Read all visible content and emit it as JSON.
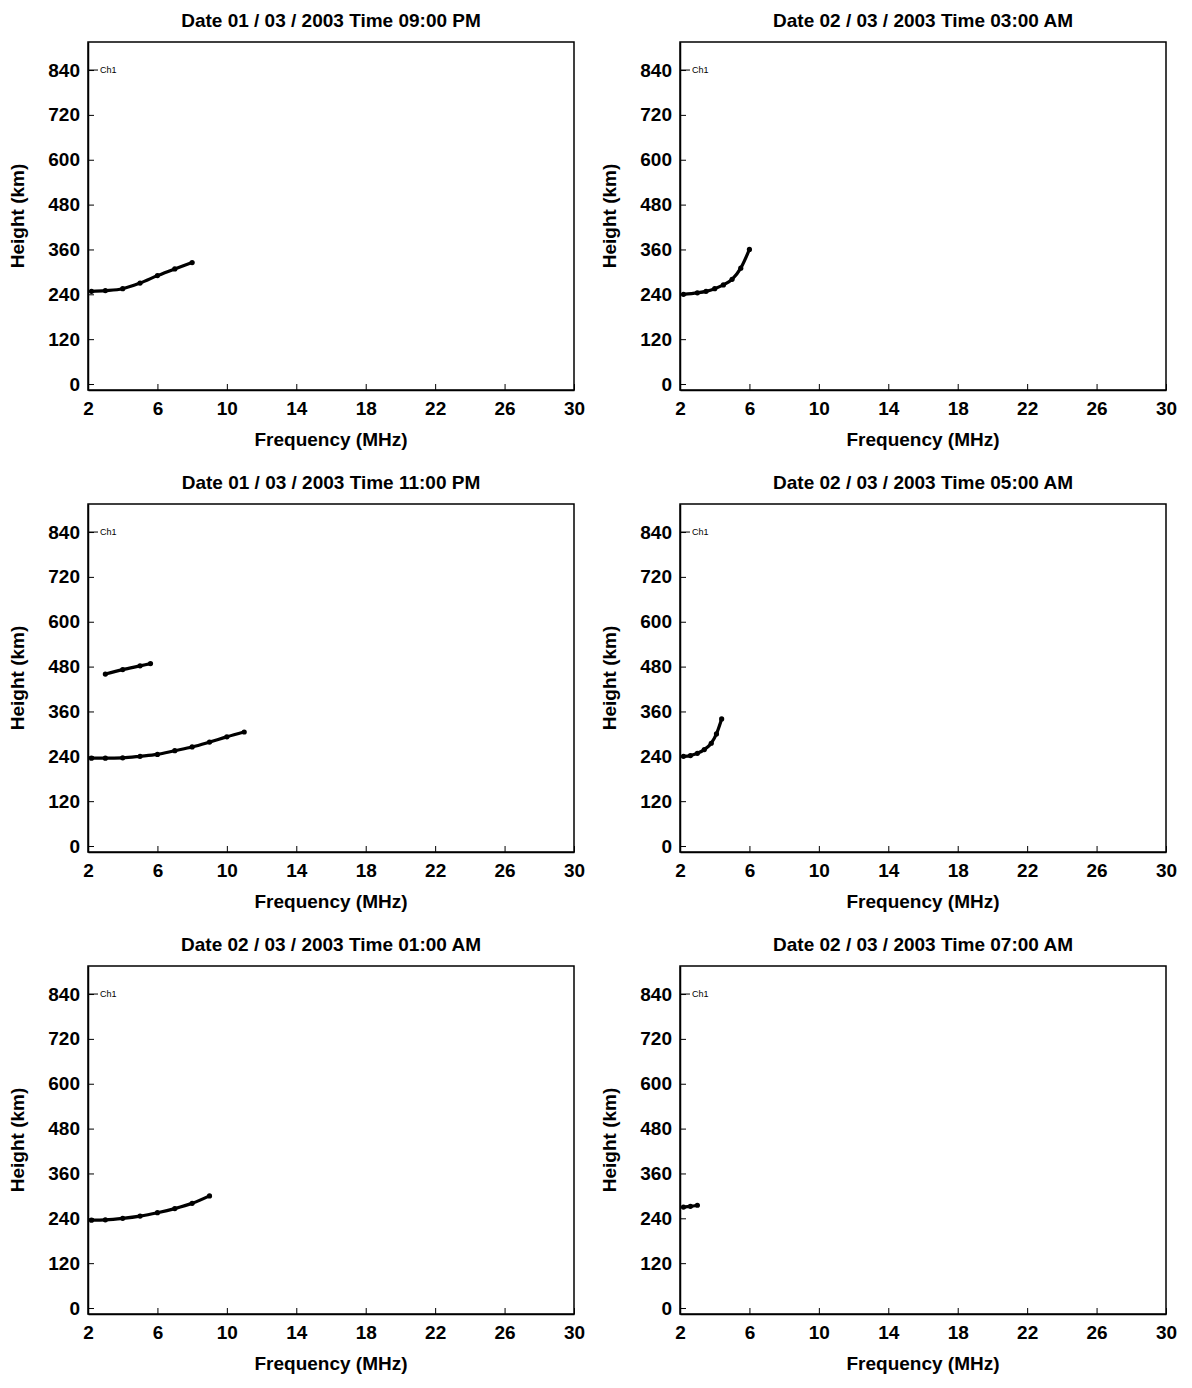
{
  "chart_data": [
    {
      "type": "line",
      "title": "Date 01 / 03 / 2003 Time 09:00 PM",
      "x_label": "Frequency (MHz)",
      "y_label": "Height (km)",
      "annotations": [
        {
          "text": "Ch1",
          "x": 2,
          "y": 840
        }
      ],
      "xlim": [
        2,
        30
      ],
      "ylim": [
        -16,
        915
      ],
      "xticks": [
        2,
        6,
        10,
        14,
        18,
        22,
        26,
        30
      ],
      "yticks": [
        0,
        120,
        240,
        360,
        480,
        600,
        720,
        840
      ],
      "series": [
        {
          "color": "#000000",
          "marker": "circle",
          "line_style": "solid",
          "x": [
            2.2,
            3,
            4,
            5,
            6,
            7,
            8
          ],
          "values": [
            248,
            250,
            255,
            270,
            290,
            308,
            325
          ]
        }
      ]
    },
    {
      "type": "line",
      "title": "Date 01 / 03 / 2003 Time 11:00 PM",
      "x_label": "Frequency (MHz)",
      "y_label": "Height (km)",
      "annotations": [
        {
          "text": "Ch1",
          "x": 2,
          "y": 840
        }
      ],
      "xlim": [
        2,
        30
      ],
      "ylim": [
        -16,
        915
      ],
      "xticks": [
        2,
        6,
        10,
        14,
        18,
        22,
        26,
        30
      ],
      "yticks": [
        0,
        120,
        240,
        360,
        480,
        600,
        720,
        840
      ],
      "series": [
        {
          "color": "#000000",
          "marker": "circle",
          "line_style": "solid",
          "x": [
            2.2,
            3,
            4,
            5,
            6,
            7,
            8,
            9,
            10,
            11
          ],
          "values": [
            235,
            235,
            236,
            240,
            245,
            255,
            265,
            278,
            292,
            305
          ]
        },
        {
          "color": "#000000",
          "marker": "circle",
          "line_style": "solid",
          "x": [
            3,
            4,
            5,
            5.6
          ],
          "values": [
            460,
            472,
            482,
            488
          ]
        }
      ]
    },
    {
      "type": "line",
      "title": "Date 02 / 03 / 2003 Time 01:00 AM",
      "x_label": "Frequency (MHz)",
      "y_label": "Height (km)",
      "annotations": [
        {
          "text": "Ch1",
          "x": 2,
          "y": 840
        }
      ],
      "xlim": [
        2,
        30
      ],
      "ylim": [
        -16,
        915
      ],
      "xticks": [
        2,
        6,
        10,
        14,
        18,
        22,
        26,
        30
      ],
      "yticks": [
        0,
        120,
        240,
        360,
        480,
        600,
        720,
        840
      ],
      "series": [
        {
          "color": "#000000",
          "marker": "circle",
          "line_style": "solid",
          "x": [
            2.2,
            3,
            4,
            5,
            6,
            7,
            8,
            9
          ],
          "values": [
            235,
            236,
            240,
            246,
            255,
            266,
            280,
            300
          ]
        }
      ]
    },
    {
      "type": "line",
      "title": "Date 02 / 03 / 2003 Time 03:00 AM",
      "x_label": "Frequency (MHz)",
      "y_label": "Height (km)",
      "annotations": [
        {
          "text": "Ch1",
          "x": 2,
          "y": 840
        }
      ],
      "xlim": [
        2,
        30
      ],
      "ylim": [
        -16,
        915
      ],
      "xticks": [
        2,
        6,
        10,
        14,
        18,
        22,
        26,
        30
      ],
      "yticks": [
        0,
        120,
        240,
        360,
        480,
        600,
        720,
        840
      ],
      "series": [
        {
          "color": "#000000",
          "marker": "circle",
          "line_style": "solid",
          "x": [
            2.2,
            3,
            3.5,
            4,
            4.5,
            5,
            5.5,
            6
          ],
          "values": [
            240,
            244,
            248,
            255,
            265,
            280,
            310,
            360
          ]
        }
      ]
    },
    {
      "type": "line",
      "title": "Date 02 / 03 / 2003 Time 05:00 AM",
      "x_label": "Frequency (MHz)",
      "y_label": "Height (km)",
      "annotations": [
        {
          "text": "Ch1",
          "x": 2,
          "y": 840
        }
      ],
      "xlim": [
        2,
        30
      ],
      "ylim": [
        -16,
        915
      ],
      "xticks": [
        2,
        6,
        10,
        14,
        18,
        22,
        26,
        30
      ],
      "yticks": [
        0,
        120,
        240,
        360,
        480,
        600,
        720,
        840
      ],
      "series": [
        {
          "color": "#000000",
          "marker": "circle",
          "line_style": "solid",
          "x": [
            2.2,
            2.6,
            3,
            3.4,
            3.8,
            4.1,
            4.4
          ],
          "values": [
            240,
            242,
            248,
            258,
            275,
            300,
            340
          ]
        }
      ]
    },
    {
      "type": "line",
      "title": "Date 02 / 03 / 2003 Time 07:00 AM",
      "x_label": "Frequency (MHz)",
      "y_label": "Height (km)",
      "annotations": [
        {
          "text": "Ch1",
          "x": 2,
          "y": 840
        }
      ],
      "xlim": [
        2,
        30
      ],
      "ylim": [
        -16,
        915
      ],
      "xticks": [
        2,
        6,
        10,
        14,
        18,
        22,
        26,
        30
      ],
      "yticks": [
        0,
        120,
        240,
        360,
        480,
        600,
        720,
        840
      ],
      "series": [
        {
          "color": "#000000",
          "marker": "circle",
          "line_style": "solid",
          "x": [
            2.2,
            2.6,
            3
          ],
          "values": [
            270,
            272,
            275
          ]
        }
      ]
    }
  ]
}
